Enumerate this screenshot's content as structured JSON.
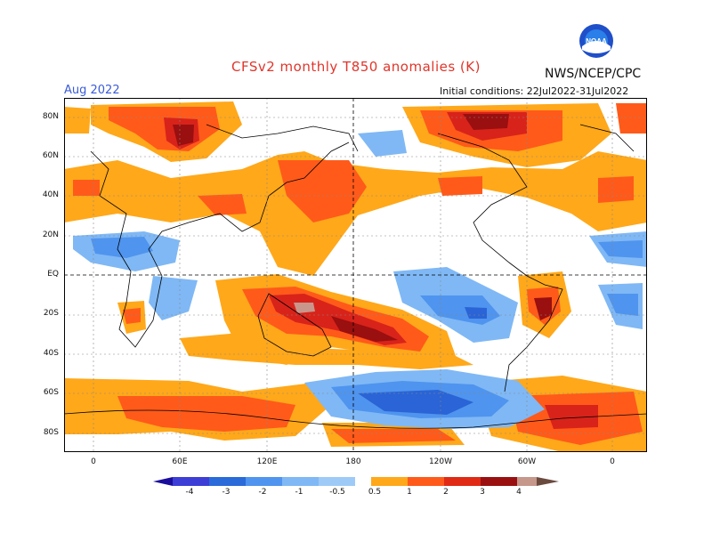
{
  "header": {
    "title": "CFSv2 monthly T850 anomalies (K)",
    "org": "NWS/NCEP/CPC",
    "month": "Aug 2022",
    "init": "Initial conditions: 22Jul2022-31Jul2022",
    "logo_text": "NOAA"
  },
  "map": {
    "lat_labels": [
      "80N",
      "60N",
      "40N",
      "20N",
      "EQ",
      "20S",
      "40S",
      "60S",
      "80S"
    ],
    "lon_labels": [
      "0",
      "60E",
      "120E",
      "180",
      "120W",
      "60W",
      "0"
    ]
  },
  "colorbar": {
    "labels": [
      "-4",
      "-3",
      "-2",
      "-1",
      "-0.5",
      "0.5",
      "1",
      "2",
      "3",
      "4"
    ],
    "colors": [
      "#1a0d9c",
      "#3c3ed6",
      "#2a6ad9",
      "#4f94ee",
      "#7fb8f5",
      "#ffffff",
      "#ffa81a",
      "#ff5a1a",
      "#e02a14",
      "#9a1010",
      "#c6978b",
      "#6b4a3e"
    ]
  },
  "anomaly_colors": {
    "warm1": "#ffa81a",
    "warm2": "#ff5a1a",
    "warm3": "#d8231a",
    "warm4": "#9a0f0f",
    "warm5": "#c9968b",
    "cool1": "#7fb8f5",
    "cool2": "#4f94ee",
    "cool3": "#2a64d6"
  }
}
